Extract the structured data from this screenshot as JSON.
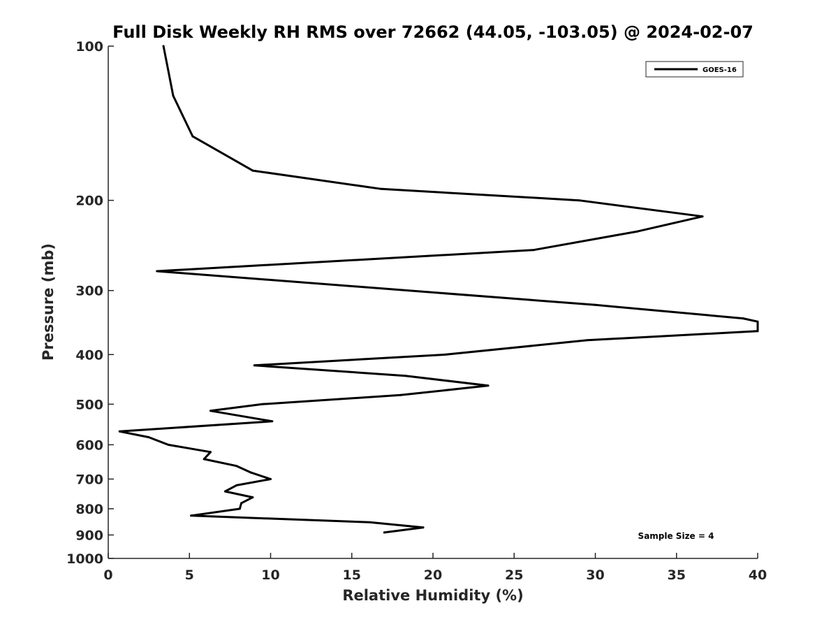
{
  "chart_data": {
    "type": "line",
    "title": "Full Disk Weekly RH RMS over 72662 (44.05, -103.05) @ 2024-02-07",
    "xlabel": "Relative Humidity (%)",
    "ylabel": "Pressure (mb)",
    "xlim": [
      0,
      40
    ],
    "ylim": [
      100,
      1000
    ],
    "y_scale": "log",
    "y_reversed": true,
    "x_ticks": [
      0,
      5,
      10,
      15,
      20,
      25,
      30,
      35,
      40
    ],
    "y_ticks": [
      100,
      200,
      300,
      400,
      500,
      600,
      700,
      800,
      900,
      1000
    ],
    "grid": false,
    "legend_position": "top-right",
    "annotation": "Sample Size = 4",
    "series": [
      {
        "name": "GOES-16",
        "color": "#000000",
        "points": [
          {
            "x": 3.4,
            "y": 100
          },
          {
            "x": 4.0,
            "y": 125
          },
          {
            "x": 5.2,
            "y": 150
          },
          {
            "x": 8.9,
            "y": 175
          },
          {
            "x": 16.8,
            "y": 190
          },
          {
            "x": 29.0,
            "y": 200
          },
          {
            "x": 36.6,
            "y": 215
          },
          {
            "x": 32.6,
            "y": 230
          },
          {
            "x": 26.2,
            "y": 250
          },
          {
            "x": 3.0,
            "y": 275
          },
          {
            "x": 30.0,
            "y": 320
          },
          {
            "x": 39.1,
            "y": 340
          },
          {
            "x": 40.0,
            "y": 345
          },
          {
            "x": 40.0,
            "y": 360
          },
          {
            "x": 29.5,
            "y": 375
          },
          {
            "x": 20.8,
            "y": 400
          },
          {
            "x": 9.0,
            "y": 420
          },
          {
            "x": 18.3,
            "y": 440
          },
          {
            "x": 23.4,
            "y": 460
          },
          {
            "x": 18.0,
            "y": 480
          },
          {
            "x": 9.5,
            "y": 500
          },
          {
            "x": 6.3,
            "y": 515
          },
          {
            "x": 10.1,
            "y": 540
          },
          {
            "x": 0.7,
            "y": 565
          },
          {
            "x": 2.5,
            "y": 580
          },
          {
            "x": 3.7,
            "y": 600
          },
          {
            "x": 6.3,
            "y": 620
          },
          {
            "x": 5.9,
            "y": 640
          },
          {
            "x": 7.9,
            "y": 660
          },
          {
            "x": 8.8,
            "y": 680
          },
          {
            "x": 10.0,
            "y": 700
          },
          {
            "x": 7.9,
            "y": 720
          },
          {
            "x": 7.2,
            "y": 740
          },
          {
            "x": 8.9,
            "y": 760
          },
          {
            "x": 8.2,
            "y": 780
          },
          {
            "x": 8.1,
            "y": 800
          },
          {
            "x": 5.1,
            "y": 825
          },
          {
            "x": 16.1,
            "y": 850
          },
          {
            "x": 19.4,
            "y": 870
          },
          {
            "x": 17.0,
            "y": 890
          }
        ]
      }
    ]
  }
}
